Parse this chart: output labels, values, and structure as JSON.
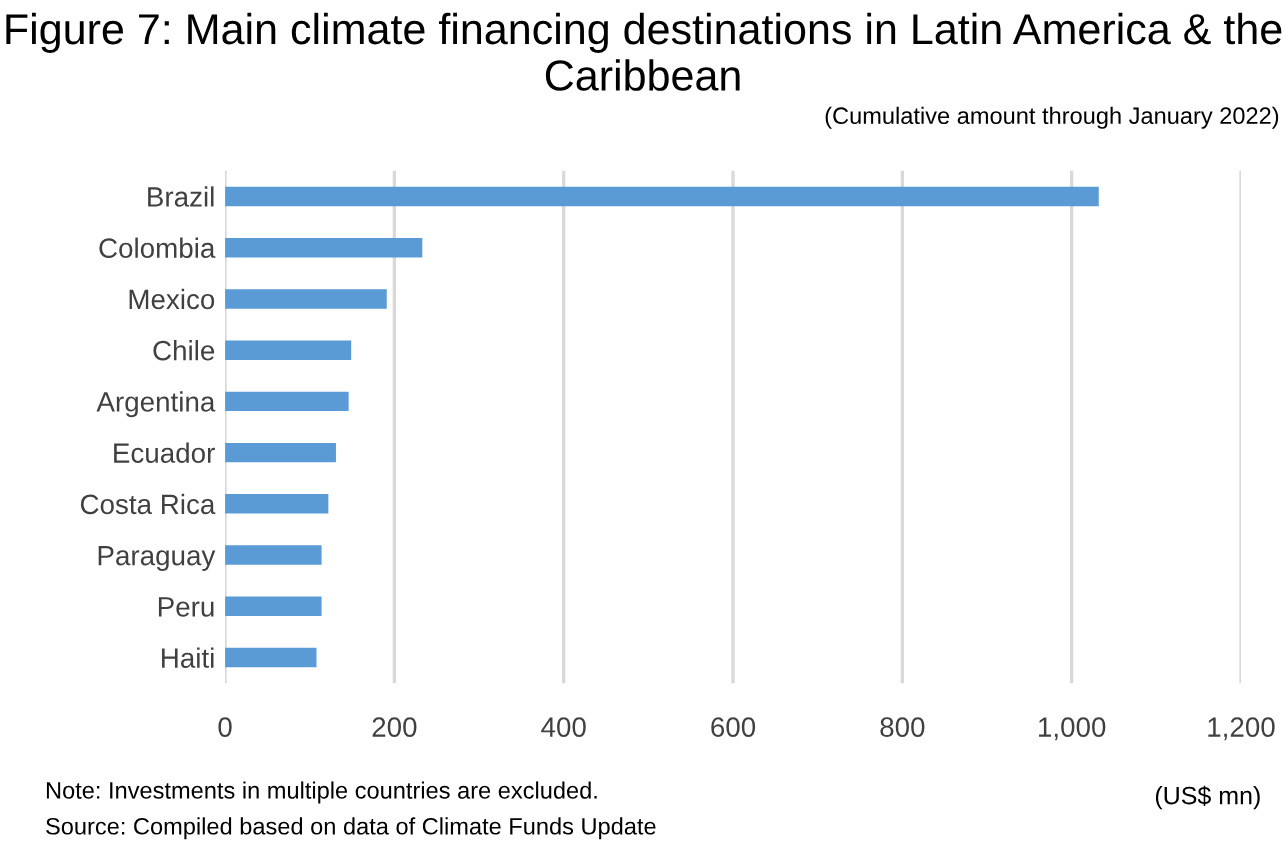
{
  "chart_data": {
    "type": "bar",
    "orientation": "horizontal",
    "title": "Figure 7: Main climate financing destinations in Latin America & the Caribbean",
    "subtitle": "(Cumulative amount through January 2022)",
    "xlabel": "(US$ mn)",
    "categories": [
      "Brazil",
      "Colombia",
      "Mexico",
      "Chile",
      "Argentina",
      "Ecuador",
      "Costa Rica",
      "Paraguay",
      "Peru",
      "Haiti"
    ],
    "values": [
      1032,
      233,
      191,
      149,
      146,
      131,
      122,
      114,
      114,
      108
    ],
    "color": "#5b9bd5",
    "xlim": [
      0,
      1200
    ],
    "xticks": [
      0,
      {
        "value": 200,
        "label": "200"
      },
      {
        "value": 400,
        "label": "400"
      },
      {
        "value": 600,
        "label": "600"
      },
      {
        "value": 800,
        "label": "800"
      },
      {
        "value": 1000,
        "label": "1,000"
      },
      {
        "value": 1200,
        "label": "1,200"
      }
    ],
    "grid": "x",
    "annotations": [
      "Note: Investments in multiple countries are excluded.",
      "Source: Compiled based on data of Climate Funds Update"
    ]
  }
}
